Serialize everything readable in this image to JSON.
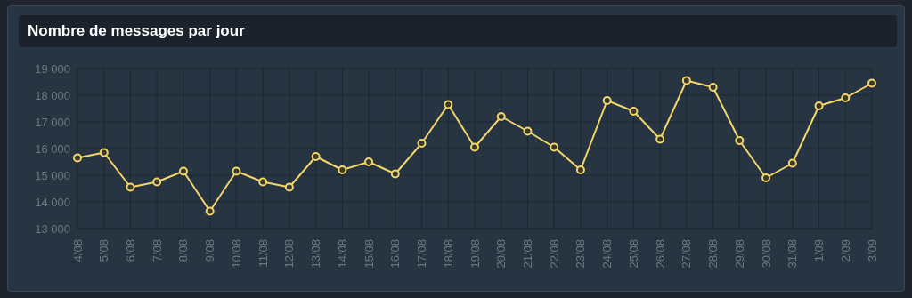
{
  "chart_data": {
    "type": "line",
    "title": "Nombre de messages par jour",
    "categories": [
      "4/08",
      "5/08",
      "6/08",
      "7/08",
      "8/08",
      "9/08",
      "10/08",
      "11/08",
      "12/08",
      "13/08",
      "14/08",
      "15/08",
      "16/08",
      "17/08",
      "18/08",
      "19/08",
      "20/08",
      "21/08",
      "22/08",
      "23/08",
      "24/08",
      "25/08",
      "26/08",
      "27/08",
      "28/08",
      "29/08",
      "30/08",
      "31/08",
      "1/09",
      "2/09",
      "3/09"
    ],
    "series": [
      {
        "color": "#f2d56b",
        "values": [
          15650,
          15850,
          14550,
          14750,
          15150,
          13650,
          15150,
          14750,
          14550,
          15700,
          15200,
          15500,
          15050,
          16200,
          17650,
          16050,
          17200,
          16650,
          16050,
          15200,
          17800,
          17400,
          16350,
          18550,
          18300,
          16300,
          14900,
          15450,
          17600,
          17900,
          18450
        ]
      }
    ],
    "ylim": [
      13000,
      19000
    ],
    "yticks": [
      {
        "value": 13000,
        "label": "13 000"
      },
      {
        "value": 14000,
        "label": "14 000"
      },
      {
        "value": 15000,
        "label": "15 000"
      },
      {
        "value": 16000,
        "label": "16 000"
      },
      {
        "value": 17000,
        "label": "17 000"
      },
      {
        "value": 18000,
        "label": "18 000"
      },
      {
        "value": 19000,
        "label": "19 000"
      }
    ],
    "grid": true,
    "marker": "circle",
    "line_style": "solid"
  }
}
